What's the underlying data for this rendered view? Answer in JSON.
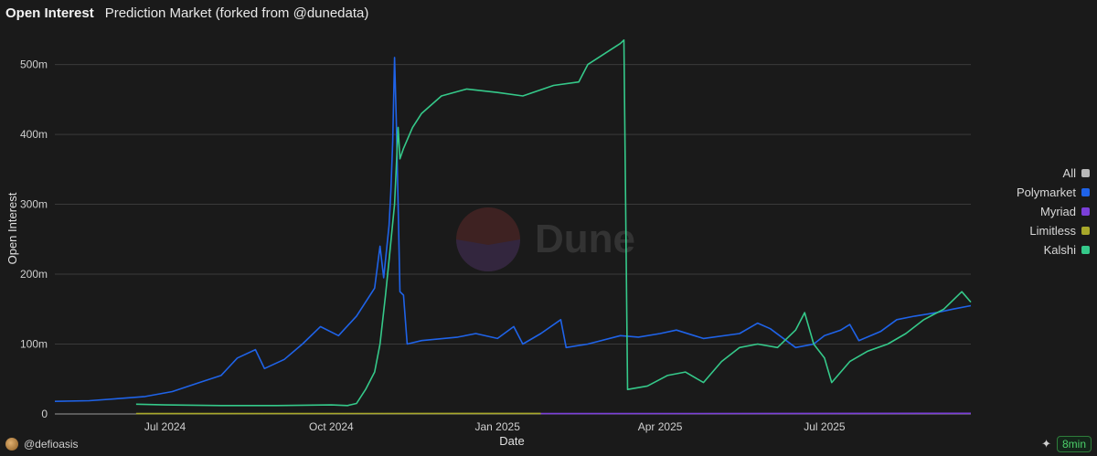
{
  "header": {
    "title": "Open Interest",
    "subtitle": "Prediction Market (forked from @dunedata)"
  },
  "watermark": {
    "text": "Dune"
  },
  "footer": {
    "author": "@defioasis",
    "refresh": "8min",
    "sparkle_icon": "sparkle-icon"
  },
  "legend": {
    "items": [
      {
        "label": "All",
        "color": "#b8b8b8"
      },
      {
        "label": "Polymarket",
        "color": "#1f63e8"
      },
      {
        "label": "Myriad",
        "color": "#7b3fd9"
      },
      {
        "label": "Limitless",
        "color": "#a8a82a"
      },
      {
        "label": "Kalshi",
        "color": "#35c98a"
      }
    ]
  },
  "chart_data": {
    "type": "line",
    "xlabel": "Date",
    "ylabel": "Open Interest",
    "x_range": [
      "2024-05-01",
      "2025-09-20"
    ],
    "ylim": [
      0,
      540000000
    ],
    "y_ticks": [
      {
        "value": 0,
        "label": "0"
      },
      {
        "value": 100000000,
        "label": "100m"
      },
      {
        "value": 200000000,
        "label": "200m"
      },
      {
        "value": 300000000,
        "label": "300m"
      },
      {
        "value": 400000000,
        "label": "400m"
      },
      {
        "value": 500000000,
        "label": "500m"
      }
    ],
    "x_ticks": [
      {
        "date": "2024-07-01",
        "label": "Jul 2024"
      },
      {
        "date": "2024-10-01",
        "label": "Oct 2024"
      },
      {
        "date": "2025-01-01",
        "label": "Jan 2025"
      },
      {
        "date": "2025-04-01",
        "label": "Apr 2025"
      },
      {
        "date": "2025-07-01",
        "label": "Jul 2025"
      }
    ],
    "grid": true,
    "legend_position": "right",
    "series": [
      {
        "name": "Polymarket",
        "color": "#1f63e8",
        "points": [
          [
            "2024-05-01",
            18000000
          ],
          [
            "2024-05-20",
            19000000
          ],
          [
            "2024-06-05",
            22000000
          ],
          [
            "2024-06-20",
            25000000
          ],
          [
            "2024-07-05",
            32000000
          ],
          [
            "2024-07-20",
            45000000
          ],
          [
            "2024-08-01",
            55000000
          ],
          [
            "2024-08-10",
            80000000
          ],
          [
            "2024-08-20",
            92000000
          ],
          [
            "2024-08-25",
            65000000
          ],
          [
            "2024-09-05",
            78000000
          ],
          [
            "2024-09-15",
            100000000
          ],
          [
            "2024-09-25",
            125000000
          ],
          [
            "2024-10-05",
            112000000
          ],
          [
            "2024-10-15",
            140000000
          ],
          [
            "2024-10-25",
            180000000
          ],
          [
            "2024-10-28",
            240000000
          ],
          [
            "2024-10-30",
            195000000
          ],
          [
            "2024-11-02",
            270000000
          ],
          [
            "2024-11-03",
            320000000
          ],
          [
            "2024-11-04",
            390000000
          ],
          [
            "2024-11-05",
            510000000
          ],
          [
            "2024-11-06",
            420000000
          ],
          [
            "2024-11-07",
            300000000
          ],
          [
            "2024-11-08",
            175000000
          ],
          [
            "2024-11-10",
            170000000
          ],
          [
            "2024-11-12",
            100000000
          ],
          [
            "2024-11-20",
            105000000
          ],
          [
            "2024-12-10",
            110000000
          ],
          [
            "2024-12-20",
            115000000
          ],
          [
            "2025-01-01",
            108000000
          ],
          [
            "2025-01-10",
            125000000
          ],
          [
            "2025-01-15",
            100000000
          ],
          [
            "2025-01-25",
            115000000
          ],
          [
            "2025-02-05",
            135000000
          ],
          [
            "2025-02-08",
            95000000
          ],
          [
            "2025-02-20",
            100000000
          ],
          [
            "2025-03-10",
            112000000
          ],
          [
            "2025-03-20",
            110000000
          ],
          [
            "2025-04-01",
            115000000
          ],
          [
            "2025-04-10",
            120000000
          ],
          [
            "2025-04-25",
            108000000
          ],
          [
            "2025-05-15",
            115000000
          ],
          [
            "2025-05-25",
            130000000
          ],
          [
            "2025-06-01",
            122000000
          ],
          [
            "2025-06-15",
            95000000
          ],
          [
            "2025-06-25",
            100000000
          ],
          [
            "2025-07-01",
            112000000
          ],
          [
            "2025-07-10",
            120000000
          ],
          [
            "2025-07-15",
            128000000
          ],
          [
            "2025-07-20",
            105000000
          ],
          [
            "2025-08-01",
            118000000
          ],
          [
            "2025-08-10",
            135000000
          ],
          [
            "2025-08-20",
            140000000
          ],
          [
            "2025-09-01",
            145000000
          ],
          [
            "2025-09-10",
            150000000
          ],
          [
            "2025-09-20",
            155000000
          ]
        ]
      },
      {
        "name": "Kalshi",
        "color": "#35c98a",
        "points": [
          [
            "2024-06-15",
            14000000
          ],
          [
            "2024-07-01",
            13000000
          ],
          [
            "2024-08-01",
            12000000
          ],
          [
            "2024-09-01",
            12000000
          ],
          [
            "2024-10-01",
            13000000
          ],
          [
            "2024-10-10",
            12000000
          ],
          [
            "2024-10-15",
            15000000
          ],
          [
            "2024-10-20",
            35000000
          ],
          [
            "2024-10-25",
            60000000
          ],
          [
            "2024-10-28",
            100000000
          ],
          [
            "2024-10-31",
            170000000
          ],
          [
            "2024-11-02",
            220000000
          ],
          [
            "2024-11-05",
            300000000
          ],
          [
            "2024-11-07",
            410000000
          ],
          [
            "2024-11-08",
            365000000
          ],
          [
            "2024-11-10",
            380000000
          ],
          [
            "2024-11-15",
            410000000
          ],
          [
            "2024-11-20",
            430000000
          ],
          [
            "2024-12-01",
            455000000
          ],
          [
            "2024-12-15",
            465000000
          ],
          [
            "2025-01-01",
            460000000
          ],
          [
            "2025-01-15",
            455000000
          ],
          [
            "2025-02-01",
            470000000
          ],
          [
            "2025-02-15",
            475000000
          ],
          [
            "2025-02-20",
            500000000
          ],
          [
            "2025-03-01",
            515000000
          ],
          [
            "2025-03-10",
            530000000
          ],
          [
            "2025-03-12",
            535000000
          ],
          [
            "2025-03-14",
            35000000
          ],
          [
            "2025-03-25",
            40000000
          ],
          [
            "2025-04-05",
            55000000
          ],
          [
            "2025-04-15",
            60000000
          ],
          [
            "2025-04-25",
            45000000
          ],
          [
            "2025-05-05",
            75000000
          ],
          [
            "2025-05-15",
            95000000
          ],
          [
            "2025-05-25",
            100000000
          ],
          [
            "2025-06-05",
            95000000
          ],
          [
            "2025-06-15",
            120000000
          ],
          [
            "2025-06-20",
            145000000
          ],
          [
            "2025-06-25",
            100000000
          ],
          [
            "2025-07-01",
            80000000
          ],
          [
            "2025-07-05",
            45000000
          ],
          [
            "2025-07-15",
            75000000
          ],
          [
            "2025-07-25",
            90000000
          ],
          [
            "2025-08-05",
            100000000
          ],
          [
            "2025-08-15",
            115000000
          ],
          [
            "2025-08-25",
            135000000
          ],
          [
            "2025-09-05",
            150000000
          ],
          [
            "2025-09-15",
            175000000
          ],
          [
            "2025-09-20",
            160000000
          ]
        ]
      },
      {
        "name": "Limitless",
        "color": "#a8a82a",
        "points": [
          [
            "2024-06-15",
            500000
          ],
          [
            "2025-01-25",
            800000
          ]
        ]
      },
      {
        "name": "Myriad",
        "color": "#7b3fd9",
        "points": [
          [
            "2025-01-25",
            500000
          ],
          [
            "2025-09-20",
            900000
          ]
        ]
      }
    ]
  }
}
